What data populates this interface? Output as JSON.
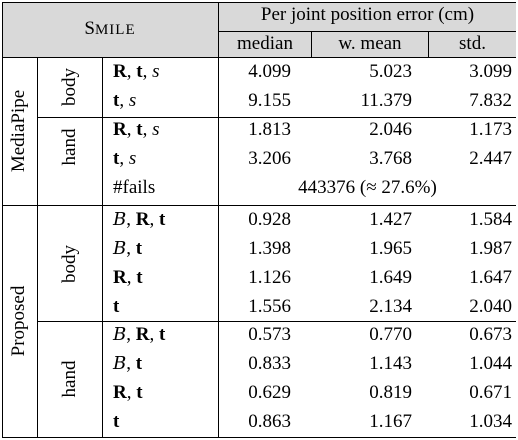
{
  "header": {
    "method_title_first": "S",
    "method_title_rest": "MILE",
    "group_title": "Per joint position error (cm)",
    "columns": [
      "median",
      "w. mean",
      "std."
    ]
  },
  "sections": [
    {
      "name": "MediaPipe",
      "groups": [
        {
          "name": "body",
          "rows": [
            {
              "config": "R, t, s",
              "median": "4.099",
              "wmean": "5.023",
              "std": "3.099"
            },
            {
              "config": "t, s",
              "median": "9.155",
              "wmean": "11.379",
              "std": "7.832"
            }
          ]
        },
        {
          "name": "hand",
          "rows": [
            {
              "config": "R, t, s",
              "median": "1.813",
              "wmean": "2.046",
              "std": "1.173"
            },
            {
              "config": "t, s",
              "median": "3.206",
              "wmean": "3.768",
              "std": "2.447"
            }
          ]
        }
      ],
      "fails": {
        "label": "#fails",
        "value": "443376 (≈ 27.6%)"
      }
    },
    {
      "name": "Proposed",
      "groups": [
        {
          "name": "body",
          "rows": [
            {
              "config": "B, R, t",
              "median": "0.928",
              "wmean": "1.427",
              "std": "1.584"
            },
            {
              "config": "B, t",
              "median": "1.398",
              "wmean": "1.965",
              "std": "1.987"
            },
            {
              "config": "R, t",
              "median": "1.126",
              "wmean": "1.649",
              "std": "1.647"
            },
            {
              "config": "t",
              "median": "1.556",
              "wmean": "2.134",
              "std": "2.040"
            }
          ]
        },
        {
          "name": "hand",
          "rows": [
            {
              "config": "B, R, t",
              "median": "0.573",
              "wmean": "0.770",
              "std": "0.673"
            },
            {
              "config": "B, t",
              "median": "0.833",
              "wmean": "1.143",
              "std": "1.044"
            },
            {
              "config": "R, t",
              "median": "0.629",
              "wmean": "0.819",
              "std": "0.671"
            },
            {
              "config": "t",
              "median": "0.863",
              "wmean": "1.167",
              "std": "1.034"
            }
          ]
        }
      ]
    }
  ],
  "colors": {
    "header_shade": "#d9d9d9",
    "rule": "#000000"
  }
}
